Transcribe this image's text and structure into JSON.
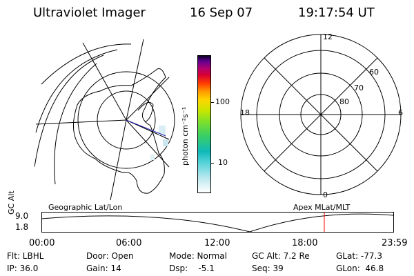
{
  "header": {
    "instrument": "Ultraviolet Imager",
    "date": "16 Sep 07",
    "time": "19:17:54 UT"
  },
  "colorbar": {
    "unit_label": "photon cm⁻²s⁻¹",
    "ticks": [
      "100",
      "10"
    ]
  },
  "maps": {
    "left_title": "Geographic Lat/Lon",
    "right_title": "Apex MLat/MLT",
    "right_labels": {
      "top": "12",
      "bottom": "0",
      "left": "18",
      "right": "6",
      "lat60": "60",
      "lat70": "70",
      "lat80": "80"
    }
  },
  "altitude_plot": {
    "label": "GC Alt",
    "y_top": "9.0",
    "y_bottom": "1.8",
    "times": [
      "00:00",
      "06:00",
      "12:00",
      "18:00",
      "23:59"
    ]
  },
  "info": {
    "flt": "Flt: LBHL",
    "ip": "IP: 36.0",
    "door": "Door: Open",
    "gain": "Gain: 14",
    "mode": "Mode: Normal",
    "dsp": "Dsp:    -5.1",
    "gcalt": "GC Alt: 7.2 Re",
    "seq": "Seq: 39",
    "glat": "GLat: -77.3",
    "glon": "GLon:  46.8"
  },
  "colors": {
    "grid": "#000000",
    "marker": "#ff0000",
    "aurora_hint": "#bfe4ef"
  }
}
